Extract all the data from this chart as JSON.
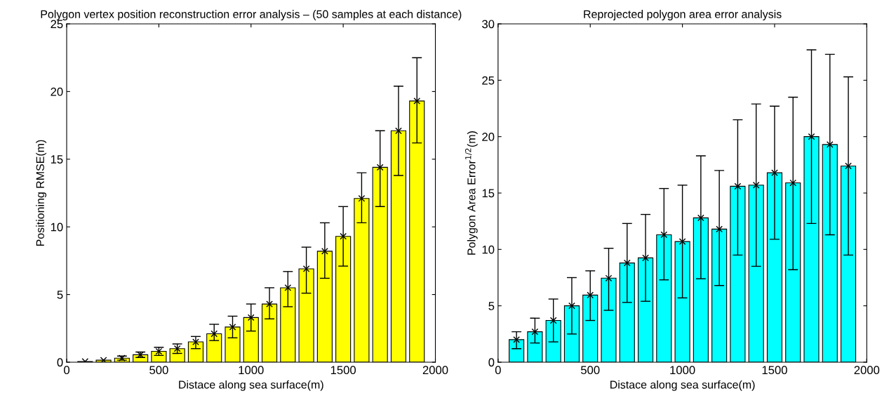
{
  "chart_data": [
    {
      "type": "bar",
      "title": "Polygon vertex position reconstruction error analysis – (50 samples at each distance)",
      "xlabel": "Distace along sea surface(m)",
      "ylabel": "Positioning RMSE(m)",
      "x": [
        100,
        200,
        300,
        400,
        500,
        600,
        700,
        800,
        900,
        1000,
        1100,
        1200,
        1300,
        1400,
        1500,
        1600,
        1700,
        1800,
        1900
      ],
      "series": [
        {
          "type": "scatter",
          "color": "#000000",
          "marker": "cross",
          "values": [
            0.05,
            0.15,
            0.3,
            0.55,
            0.8,
            1.0,
            1.5,
            2.1,
            2.6,
            3.3,
            4.3,
            5.5,
            6.9,
            8.2,
            9.3,
            12.1,
            14.4,
            17.1,
            19.3
          ]
        },
        {
          "color": "#ffff00",
          "values": [
            0.05,
            0.15,
            0.3,
            0.55,
            0.8,
            1.0,
            1.5,
            2.1,
            2.6,
            3.3,
            4.3,
            5.5,
            6.9,
            8.2,
            9.3,
            12.1,
            14.4,
            17.1,
            19.3
          ],
          "errors": [
            null,
            null,
            0.15,
            0.2,
            0.3,
            0.35,
            [
              1.0,
              1.9
            ],
            [
              1.6,
              2.8
            ],
            [
              1.8,
              3.4
            ],
            [
              2.3,
              4.3
            ],
            [
              3.2,
              5.5
            ],
            [
              4.1,
              6.7
            ],
            [
              5.1,
              8.5
            ],
            [
              6.2,
              10.3
            ],
            [
              7.1,
              11.5
            ],
            [
              10.3,
              14.0
            ],
            [
              11.5,
              17.1
            ],
            [
              13.8,
              20.4
            ],
            [
              16.2,
              22.5
            ]
          ]
        }
      ],
      "xlim": [
        0,
        2000
      ],
      "xticks": [
        0,
        500,
        1000,
        1500,
        2000
      ],
      "ylim": [
        0,
        25
      ],
      "yticks": [
        0,
        5,
        10,
        15,
        20,
        25
      ]
    },
    {
      "type": "bar",
      "title": "Reprojected polygon area error analysis",
      "xlabel": "Distace along sea surface(m)",
      "ylabel": "Polygon Area Error$^{1/2}$(m)",
      "x": [
        100,
        200,
        300,
        400,
        500,
        600,
        700,
        800,
        900,
        1000,
        1100,
        1200,
        1300,
        1400,
        1500,
        1600,
        1700,
        1800,
        1900
      ],
      "series": [
        {
          "type": "scatter",
          "color": "#000000",
          "marker": "cross",
          "values": [
            2.0,
            2.7,
            3.7,
            5.0,
            5.95,
            7.45,
            8.8,
            9.25,
            11.3,
            10.7,
            12.8,
            11.8,
            15.6,
            15.7,
            16.8,
            15.9,
            20.0,
            19.3,
            17.4
          ]
        },
        {
          "color": "#00ffff",
          "values": [
            2.0,
            2.7,
            3.7,
            5.0,
            5.95,
            7.45,
            8.8,
            9.25,
            11.3,
            10.7,
            12.8,
            11.8,
            15.6,
            15.7,
            16.8,
            15.9,
            20.0,
            19.3,
            17.4
          ],
          "errors": [
            [
              1.2,
              2.7
            ],
            [
              1.7,
              3.9
            ],
            [
              1.8,
              5.6
            ],
            [
              2.5,
              7.5
            ],
            [
              3.7,
              8.1
            ],
            [
              4.6,
              10.1
            ],
            [
              5.3,
              12.3
            ],
            [
              5.4,
              13.1
            ],
            [
              7.3,
              15.4
            ],
            [
              5.7,
              15.7
            ],
            [
              7.4,
              18.3
            ],
            [
              6.8,
              17.0
            ],
            [
              9.5,
              21.5
            ],
            [
              8.5,
              22.9
            ],
            [
              10.9,
              22.7
            ],
            [
              8.2,
              23.5
            ],
            [
              12.3,
              27.7
            ],
            [
              11.3,
              27.3
            ],
            [
              9.5,
              25.3
            ]
          ]
        }
      ],
      "xlim": [
        0,
        2000
      ],
      "xticks": [
        0,
        500,
        1000,
        1500,
        2000
      ],
      "ylim": [
        0,
        30
      ],
      "yticks": [
        0,
        5,
        10,
        15,
        20,
        25,
        30
      ]
    }
  ]
}
